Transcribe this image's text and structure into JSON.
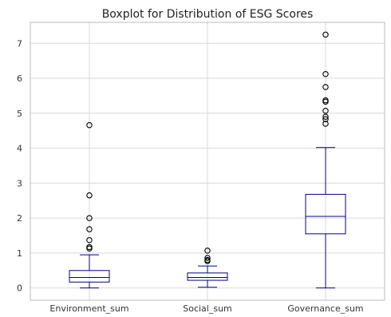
{
  "chart_data": {
    "type": "boxplot",
    "title": "Boxplot for Distribution of ESG Scores",
    "xlabel": "",
    "ylabel": "",
    "ylim": [
      -0.35,
      7.6
    ],
    "yticks": [
      0,
      1,
      2,
      3,
      4,
      5,
      6,
      7
    ],
    "grid": true,
    "box_color": "#00008b",
    "outlier_color": "#000000",
    "categories": [
      "Environment_sum",
      "Social_sum",
      "Governance_sum"
    ],
    "series": [
      {
        "category": "Environment_sum",
        "whisker_low": 0.0,
        "q1": 0.17,
        "median": 0.3,
        "q3": 0.5,
        "whisker_high": 0.95,
        "outliers": [
          4.66,
          2.65,
          2.0,
          1.68,
          1.37,
          1.17,
          1.13
        ]
      },
      {
        "category": "Social_sum",
        "whisker_low": 0.02,
        "q1": 0.22,
        "median": 0.3,
        "q3": 0.43,
        "whisker_high": 0.63,
        "outliers": [
          1.07,
          0.86,
          0.8,
          0.77
        ]
      },
      {
        "category": "Governance_sum",
        "whisker_low": 0.0,
        "q1": 1.55,
        "median": 2.05,
        "q3": 2.68,
        "whisker_high": 4.02,
        "outliers": [
          7.25,
          6.12,
          5.75,
          5.37,
          5.33,
          5.07,
          4.9,
          4.83,
          4.7
        ]
      }
    ]
  }
}
